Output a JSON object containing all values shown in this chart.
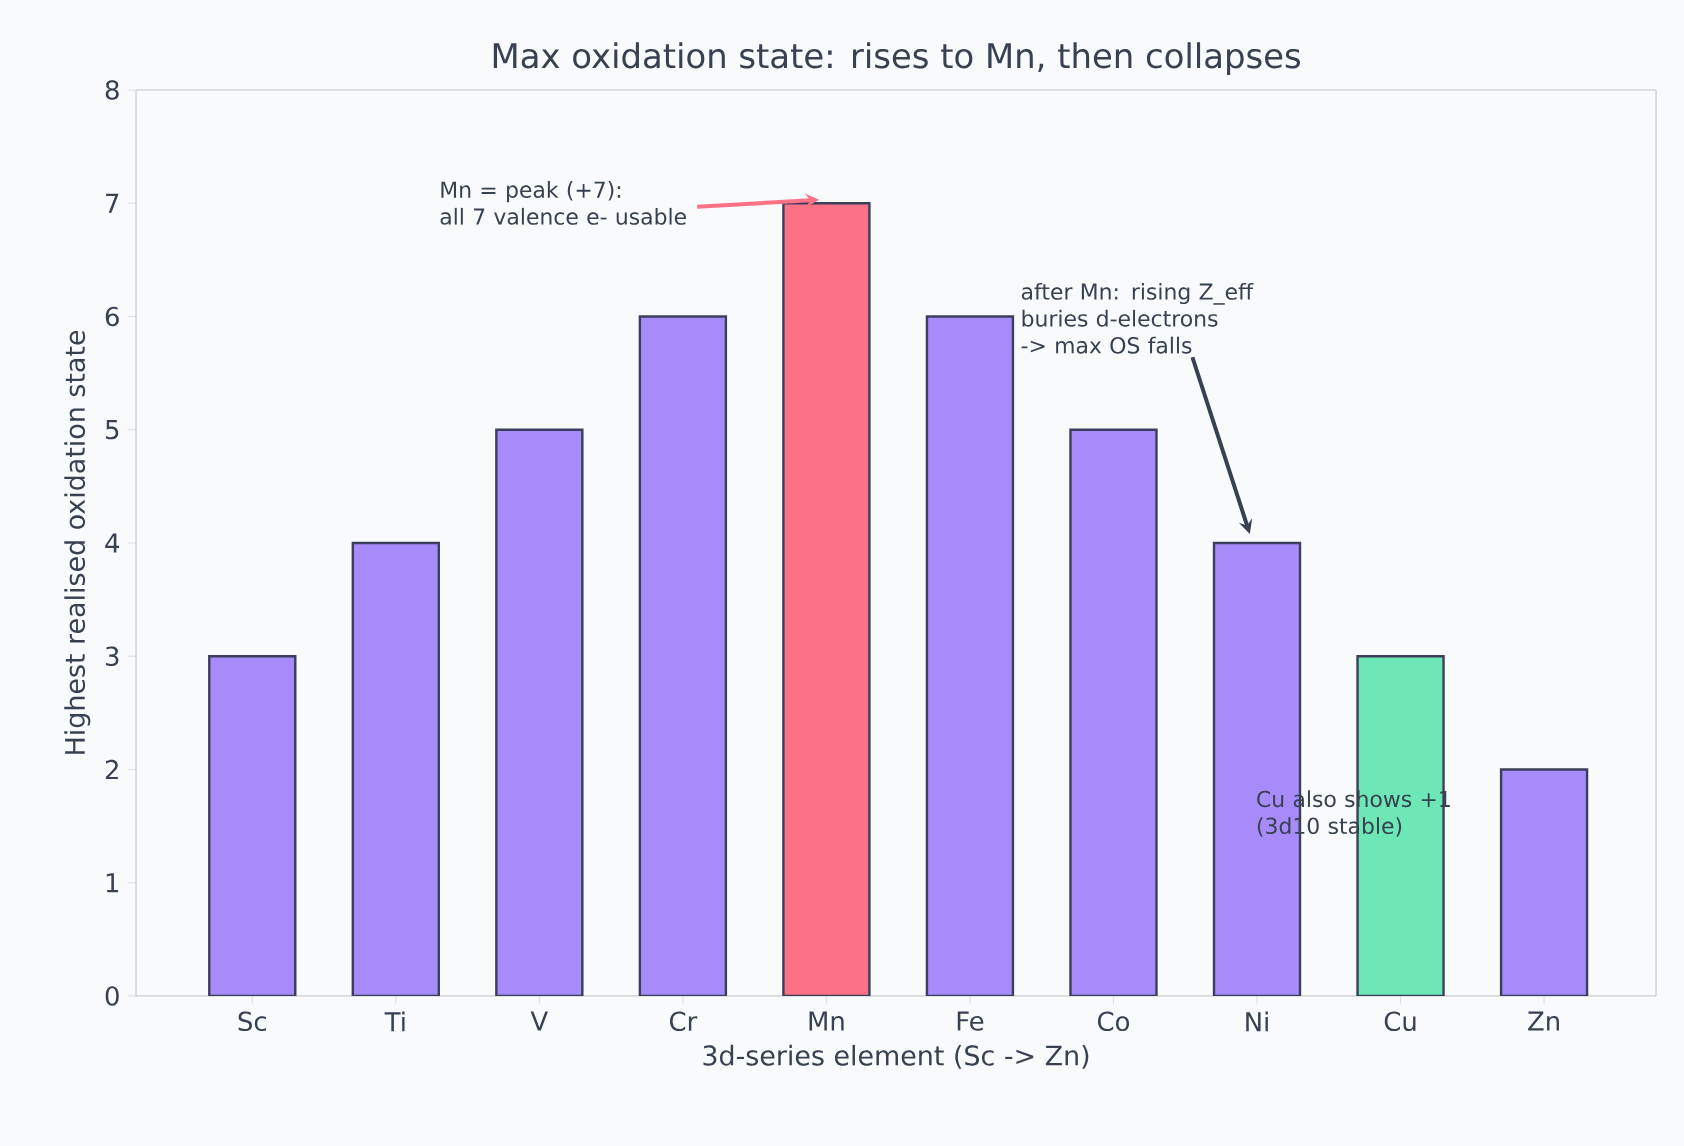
{
  "chart_data": {
    "type": "bar",
    "title": "Max oxidation state: rises to Mn, then collapses",
    "xlabel": "3d-series element (Sc -> Zn)",
    "ylabel": "Highest realised oxidation state",
    "categories": [
      "Sc",
      "Ti",
      "V",
      "Cr",
      "Mn",
      "Fe",
      "Co",
      "Ni",
      "Cu",
      "Zn"
    ],
    "values": [
      3,
      4,
      5,
      6,
      7,
      6,
      5,
      4,
      3,
      2
    ],
    "colors": [
      "#a78bfa",
      "#a78bfa",
      "#a78bfa",
      "#a78bfa",
      "#fb7185",
      "#a78bfa",
      "#a78bfa",
      "#a78bfa",
      "#6ee7b7",
      "#a78bfa"
    ],
    "ylim": [
      0,
      8
    ],
    "yticks": [
      0,
      1,
      2,
      3,
      4,
      5,
      6,
      7,
      8
    ],
    "grid": false,
    "annotations": [
      {
        "text": "Mn = peak (+7):\nall 7 valence e- usable",
        "x": "Mn",
        "y": 7
      },
      "after Mn: rising Z_eff\nburies d-electrons\n-> max OS falls",
      "Cu also shows +1\n(3d10 stable)"
    ]
  }
}
